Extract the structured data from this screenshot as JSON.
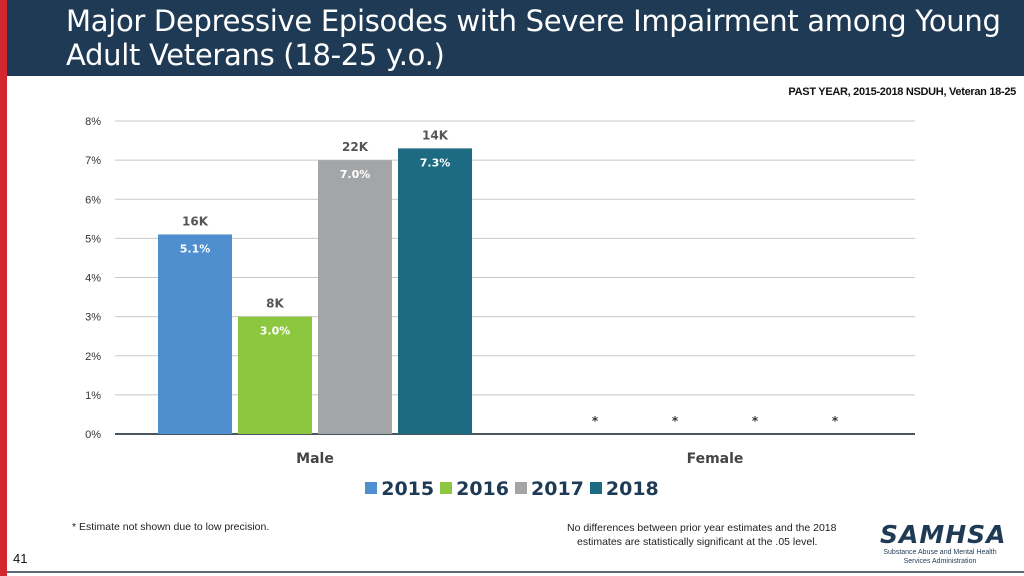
{
  "header": {
    "title_line1": "Major Depressive Episodes with Severe Impairment among Young",
    "title_line2": "Adult Veterans (18-25 y.o.)"
  },
  "subtitle": "PAST YEAR, 2015-2018 NSDUH, Veteran 18-25",
  "colors": {
    "header_bg": "#1f3a55",
    "accent_red": "#d3272e",
    "series": [
      "#4f8fcf",
      "#8dc63f",
      "#a3a5a7",
      "#1c6b82"
    ]
  },
  "chart_data": {
    "type": "bar",
    "categories": [
      "Male",
      "Female"
    ],
    "ylim": [
      0,
      8
    ],
    "y_ticks": [
      "0%",
      "1%",
      "2%",
      "3%",
      "4%",
      "5%",
      "6%",
      "7%",
      "8%"
    ],
    "grid": true,
    "legend_position": "bottom",
    "series": [
      {
        "name": "2015",
        "values": [
          5.1,
          null
        ],
        "pct_labels": [
          "5.1%",
          "*"
        ],
        "count_labels": [
          "16K",
          ""
        ]
      },
      {
        "name": "2016",
        "values": [
          3.0,
          null
        ],
        "pct_labels": [
          "3.0%",
          "*"
        ],
        "count_labels": [
          "8K",
          ""
        ]
      },
      {
        "name": "2017",
        "values": [
          7.0,
          null
        ],
        "pct_labels": [
          "7.0%",
          "*"
        ],
        "count_labels": [
          "22K",
          ""
        ]
      },
      {
        "name": "2018",
        "values": [
          7.3,
          null
        ],
        "pct_labels": [
          "7.3%",
          "*"
        ],
        "count_labels": [
          "14K",
          ""
        ]
      }
    ]
  },
  "legend": [
    {
      "label": "2015"
    },
    {
      "label": "2016"
    },
    {
      "label": "2017"
    },
    {
      "label": "2018"
    }
  ],
  "footnotes": {
    "left": "* Estimate not shown due to low precision.",
    "right_line1": "No differences between prior year estimates and the 2018",
    "right_line2": "estimates are statistically significant at the .05 level."
  },
  "page_number": "41",
  "logo": {
    "word": "SAMHSA",
    "sub_line1": "Substance Abuse and Mental Health",
    "sub_line2": "Services Administration"
  }
}
